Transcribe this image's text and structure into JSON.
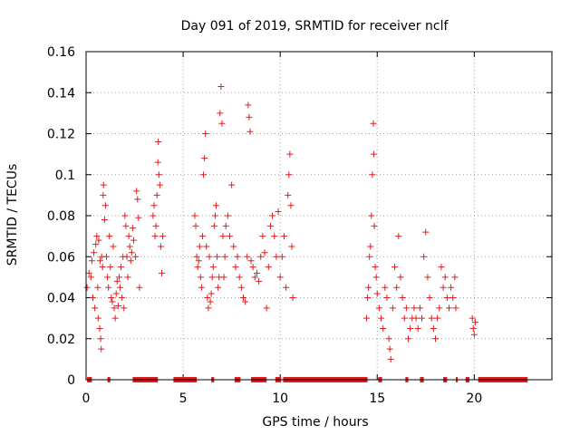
{
  "chart_data": {
    "type": "scatter",
    "title": "Day 091 of 2019, SRMTID for receiver nclf",
    "xlabel": "GPS time / hours",
    "ylabel": "SRMTID / TECUs",
    "xlim": [
      0,
      24
    ],
    "ylim": [
      0,
      0.16
    ],
    "xticks": [
      0,
      5,
      10,
      15,
      20
    ],
    "yticks": [
      0,
      0.02,
      0.04,
      0.06,
      0.08,
      0.1,
      0.12,
      0.14,
      0.16
    ],
    "xtick_labels": [
      "0",
      "5",
      "10",
      "15",
      "20"
    ],
    "ytick_labels": [
      "0",
      "0.02",
      "0.04",
      "0.06",
      "0.08",
      "0.1",
      "0.12",
      "0.14",
      "0.16"
    ],
    "grid": true,
    "marker": "+",
    "marker_color": "#e41a1c",
    "series": [
      {
        "name": "SRMTID",
        "points": [
          [
            0.05,
            0.045
          ],
          [
            0.15,
            0.052
          ],
          [
            0.25,
            0.05
          ],
          [
            0.3,
            0.058
          ],
          [
            0.35,
            0.04
          ],
          [
            0.4,
            0.062
          ],
          [
            0.45,
            0.035
          ],
          [
            0.5,
            0.066
          ],
          [
            0.55,
            0.07
          ],
          [
            0.6,
            0.045
          ],
          [
            0.62,
            0.03
          ],
          [
            0.65,
            0.068
          ],
          [
            0.7,
            0.025
          ],
          [
            0.72,
            0.058
          ],
          [
            0.75,
            0.02
          ],
          [
            0.78,
            0.015
          ],
          [
            0.8,
            0.06
          ],
          [
            0.85,
            0.055
          ],
          [
            0.88,
            0.09
          ],
          [
            0.9,
            0.095
          ],
          [
            0.95,
            0.078
          ],
          [
            1.0,
            0.085
          ],
          [
            1.05,
            0.06
          ],
          [
            1.1,
            0.05
          ],
          [
            1.15,
            0.045
          ],
          [
            1.2,
            0.07
          ],
          [
            1.25,
            0.055
          ],
          [
            1.3,
            0.04
          ],
          [
            1.35,
            0.038
          ],
          [
            1.4,
            0.065
          ],
          [
            1.45,
            0.035
          ],
          [
            1.5,
            0.03
          ],
          [
            1.55,
            0.042
          ],
          [
            1.6,
            0.048
          ],
          [
            1.65,
            0.036
          ],
          [
            1.7,
            0.05
          ],
          [
            1.75,
            0.045
          ],
          [
            1.8,
            0.055
          ],
          [
            1.85,
            0.04
          ],
          [
            1.9,
            0.06
          ],
          [
            1.95,
            0.035
          ],
          [
            2.0,
            0.08
          ],
          [
            2.05,
            0.075
          ],
          [
            2.1,
            0.06
          ],
          [
            2.15,
            0.05
          ],
          [
            2.2,
            0.07
          ],
          [
            2.25,
            0.065
          ],
          [
            2.3,
            0.058
          ],
          [
            2.35,
            0.062
          ],
          [
            2.4,
            0.074
          ],
          [
            2.45,
            0.068
          ],
          [
            2.55,
            0.06
          ],
          [
            2.6,
            0.092
          ],
          [
            2.65,
            0.088
          ],
          [
            2.7,
            0.079
          ],
          [
            2.75,
            0.045
          ],
          [
            3.45,
            0.08
          ],
          [
            3.5,
            0.085
          ],
          [
            3.55,
            0.07
          ],
          [
            3.6,
            0.075
          ],
          [
            3.65,
            0.09
          ],
          [
            3.7,
            0.106
          ],
          [
            3.72,
            0.116
          ],
          [
            3.75,
            0.1
          ],
          [
            3.8,
            0.095
          ],
          [
            3.85,
            0.065
          ],
          [
            3.9,
            0.052
          ],
          [
            3.95,
            0.07
          ],
          [
            5.6,
            0.08
          ],
          [
            5.65,
            0.075
          ],
          [
            5.7,
            0.06
          ],
          [
            5.75,
            0.055
          ],
          [
            5.8,
            0.058
          ],
          [
            5.85,
            0.065
          ],
          [
            5.9,
            0.05
          ],
          [
            5.95,
            0.045
          ],
          [
            6.0,
            0.07
          ],
          [
            6.05,
            0.1
          ],
          [
            6.1,
            0.108
          ],
          [
            6.15,
            0.12
          ],
          [
            6.2,
            0.065
          ],
          [
            6.25,
            0.04
          ],
          [
            6.3,
            0.035
          ],
          [
            6.35,
            0.06
          ],
          [
            6.4,
            0.038
          ],
          [
            6.45,
            0.042
          ],
          [
            6.5,
            0.05
          ],
          [
            6.55,
            0.055
          ],
          [
            6.6,
            0.075
          ],
          [
            6.65,
            0.08
          ],
          [
            6.7,
            0.085
          ],
          [
            6.75,
            0.06
          ],
          [
            6.8,
            0.045
          ],
          [
            6.85,
            0.05
          ],
          [
            6.9,
            0.13
          ],
          [
            6.95,
            0.143
          ],
          [
            7.0,
            0.125
          ],
          [
            7.05,
            0.07
          ],
          [
            7.1,
            0.05
          ],
          [
            7.15,
            0.06
          ],
          [
            7.2,
            0.075
          ],
          [
            7.3,
            0.08
          ],
          [
            7.4,
            0.07
          ],
          [
            7.5,
            0.095
          ],
          [
            7.6,
            0.065
          ],
          [
            7.7,
            0.055
          ],
          [
            7.8,
            0.06
          ],
          [
            7.9,
            0.05
          ],
          [
            8.0,
            0.045
          ],
          [
            8.1,
            0.04
          ],
          [
            8.2,
            0.038
          ],
          [
            8.3,
            0.06
          ],
          [
            8.35,
            0.134
          ],
          [
            8.4,
            0.128
          ],
          [
            8.45,
            0.121
          ],
          [
            8.5,
            0.058
          ],
          [
            8.6,
            0.055
          ],
          [
            8.7,
            0.05
          ],
          [
            8.8,
            0.052
          ],
          [
            8.9,
            0.048
          ],
          [
            9.0,
            0.06
          ],
          [
            9.1,
            0.07
          ],
          [
            9.2,
            0.062
          ],
          [
            9.3,
            0.035
          ],
          [
            9.4,
            0.055
          ],
          [
            9.5,
            0.075
          ],
          [
            9.6,
            0.08
          ],
          [
            9.7,
            0.07
          ],
          [
            9.8,
            0.06
          ],
          [
            9.9,
            0.082
          ],
          [
            10.0,
            0.05
          ],
          [
            10.1,
            0.06
          ],
          [
            10.2,
            0.07
          ],
          [
            10.3,
            0.045
          ],
          [
            10.4,
            0.09
          ],
          [
            10.45,
            0.1
          ],
          [
            10.5,
            0.11
          ],
          [
            10.55,
            0.085
          ],
          [
            10.6,
            0.065
          ],
          [
            10.65,
            0.04
          ],
          [
            14.45,
            0.03
          ],
          [
            14.5,
            0.04
          ],
          [
            14.55,
            0.045
          ],
          [
            14.6,
            0.06
          ],
          [
            14.65,
            0.065
          ],
          [
            14.7,
            0.08
          ],
          [
            14.75,
            0.1
          ],
          [
            14.8,
            0.125
          ],
          [
            14.82,
            0.11
          ],
          [
            14.85,
            0.075
          ],
          [
            14.9,
            0.055
          ],
          [
            14.95,
            0.05
          ],
          [
            15.0,
            0.042
          ],
          [
            15.1,
            0.035
          ],
          [
            15.2,
            0.03
          ],
          [
            15.3,
            0.025
          ],
          [
            15.4,
            0.045
          ],
          [
            15.5,
            0.04
          ],
          [
            15.6,
            0.02
          ],
          [
            15.65,
            0.015
          ],
          [
            15.7,
            0.01
          ],
          [
            15.8,
            0.035
          ],
          [
            15.9,
            0.055
          ],
          [
            16.0,
            0.045
          ],
          [
            16.1,
            0.07
          ],
          [
            16.2,
            0.05
          ],
          [
            16.3,
            0.04
          ],
          [
            16.4,
            0.03
          ],
          [
            16.5,
            0.035
          ],
          [
            16.6,
            0.02
          ],
          [
            16.7,
            0.025
          ],
          [
            16.8,
            0.03
          ],
          [
            16.9,
            0.035
          ],
          [
            17.0,
            0.03
          ],
          [
            17.1,
            0.025
          ],
          [
            17.2,
            0.035
          ],
          [
            17.3,
            0.03
          ],
          [
            17.4,
            0.06
          ],
          [
            17.5,
            0.072
          ],
          [
            17.6,
            0.05
          ],
          [
            17.7,
            0.04
          ],
          [
            17.8,
            0.03
          ],
          [
            17.9,
            0.025
          ],
          [
            18.0,
            0.02
          ],
          [
            18.1,
            0.03
          ],
          [
            18.2,
            0.035
          ],
          [
            18.3,
            0.055
          ],
          [
            18.4,
            0.045
          ],
          [
            18.5,
            0.05
          ],
          [
            18.6,
            0.04
          ],
          [
            18.7,
            0.035
          ],
          [
            18.8,
            0.045
          ],
          [
            18.9,
            0.04
          ],
          [
            19.0,
            0.05
          ],
          [
            19.05,
            0.035
          ],
          [
            19.9,
            0.03
          ],
          [
            19.95,
            0.025
          ],
          [
            20.0,
            0.022
          ],
          [
            20.05,
            0.028
          ]
        ]
      }
    ],
    "zero_bands": [
      [
        0.05,
        0.3
      ],
      [
        1.1,
        1.25
      ],
      [
        2.4,
        3.7
      ],
      [
        4.5,
        5.7
      ],
      [
        6.45,
        6.6
      ],
      [
        7.65,
        7.95
      ],
      [
        8.5,
        9.3
      ],
      [
        9.75,
        10.05
      ],
      [
        10.15,
        14.5
      ],
      [
        15.05,
        15.25
      ],
      [
        16.45,
        16.6
      ],
      [
        17.2,
        17.4
      ],
      [
        18.4,
        18.6
      ],
      [
        19.05,
        19.15
      ],
      [
        19.55,
        19.75
      ],
      [
        20.2,
        22.75
      ]
    ]
  }
}
